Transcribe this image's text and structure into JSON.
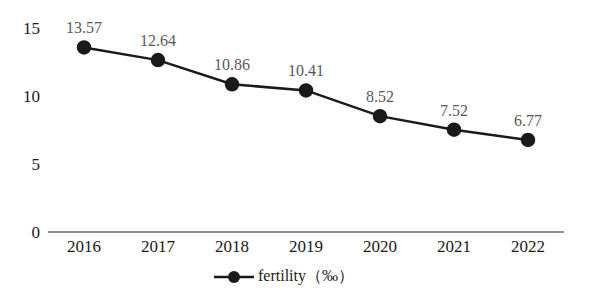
{
  "chart_data": {
    "type": "line",
    "categories": [
      "2016",
      "2017",
      "2018",
      "2019",
      "2020",
      "2021",
      "2022"
    ],
    "series": [
      {
        "name": "fertility（‰）",
        "color": "#1a1a1a",
        "values": [
          13.57,
          12.64,
          10.86,
          10.41,
          8.52,
          7.52,
          6.77
        ],
        "marker": "circle",
        "line_style": "solid"
      }
    ],
    "ylim": [
      0,
      15
    ],
    "yticks": [
      0,
      5,
      10,
      15
    ],
    "grid": false,
    "legend": "bottom",
    "data_labels": true
  }
}
